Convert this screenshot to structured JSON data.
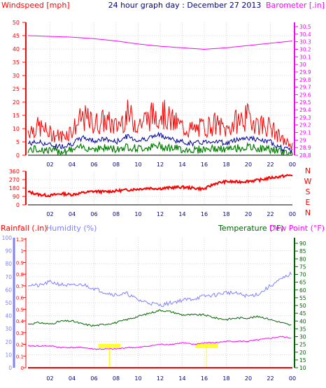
{
  "colors": {
    "wind": "#ff0000",
    "gust_avg": "#0000a0",
    "wind_low": "#008000",
    "barometer": "#ff00ff",
    "direction": "#ff0000",
    "humidity": "#8080ff",
    "temperature": "#006400",
    "dewpoint": "#ff00ff",
    "rainfall": "#ff0000",
    "rain_marker": "#ffff00",
    "grid": "#d8d8d8",
    "title": "#000080"
  },
  "chart_data": [
    {
      "type": "line",
      "title": "24 hour graph day : December 27 2013",
      "left_axis_label": "Windspeed [mph]",
      "right_axis_label": "Barometer [.in]",
      "x_ticks": [
        "02",
        "04",
        "06",
        "08",
        "10",
        "12",
        "14",
        "16",
        "18",
        "20",
        "22",
        "00"
      ],
      "y_left_ticks": [
        "0",
        "5",
        "10",
        "15",
        "20",
        "25",
        "30",
        "35",
        "40",
        "45",
        "50"
      ],
      "y_left_range": [
        0,
        50
      ],
      "y_right_ticks": [
        "28.8",
        "28.9",
        "29",
        "29.1",
        "29.2",
        "29.3",
        "29.4",
        "29.5",
        "29.6",
        "29.7",
        "29.8",
        "29.9",
        "30",
        "30.1",
        "30.2",
        "30.3",
        "30.4",
        "30.5"
      ],
      "y_right_range": [
        28.8,
        30.5
      ],
      "series": [
        {
          "name": "Windspeed [mph]",
          "axis": "left",
          "x": [
            0,
            1,
            2,
            3,
            4,
            5,
            6,
            7,
            8,
            9,
            10,
            11,
            12,
            13,
            14,
            15,
            16,
            17,
            18,
            19,
            20,
            21,
            22,
            23,
            24
          ],
          "values": [
            8,
            9,
            7,
            6,
            8,
            12,
            10,
            11,
            9,
            13,
            10,
            12,
            14,
            11,
            9,
            8,
            9,
            10,
            8,
            11,
            12,
            10,
            9,
            5,
            3
          ]
        },
        {
          "name": "Barometer",
          "axis": "right",
          "x": [
            0,
            2,
            4,
            6,
            8,
            10,
            12,
            14,
            16,
            18,
            20,
            22,
            24
          ],
          "values": [
            30.38,
            30.37,
            30.36,
            30.34,
            30.31,
            30.27,
            30.24,
            30.22,
            30.2,
            30.22,
            30.25,
            30.28,
            30.31
          ]
        }
      ]
    },
    {
      "type": "line",
      "x_ticks": [
        "02",
        "04",
        "06",
        "08",
        "10",
        "12",
        "14",
        "16",
        "18",
        "20",
        "22",
        "00"
      ],
      "y_left_ticks": [
        "0",
        "90",
        "180",
        "270",
        "360"
      ],
      "y_left_range": [
        0,
        360
      ],
      "y_right_labels": [
        "N",
        "W",
        "S",
        "E",
        "N"
      ],
      "series": [
        {
          "name": "Wind direction",
          "x": [
            0,
            1,
            2,
            3,
            4,
            5,
            6,
            7,
            8,
            9,
            10,
            11,
            12,
            13,
            14,
            15,
            16,
            17,
            18,
            19,
            20,
            21,
            22,
            23,
            24
          ],
          "values": [
            140,
            110,
            100,
            120,
            110,
            130,
            145,
            140,
            150,
            160,
            170,
            180,
            175,
            185,
            190,
            180,
            170,
            230,
            250,
            245,
            255,
            265,
            290,
            305,
            320
          ]
        }
      ]
    },
    {
      "type": "line",
      "labels": {
        "rainfall": "Rainfall (.in)",
        "humidity": "Humidity (%)",
        "temperature": "Temperature (°F)",
        "dewpoint": "Dew Point (°F)"
      },
      "x_ticks": [
        "02",
        "04",
        "06",
        "08",
        "10",
        "12",
        "14",
        "16",
        "18",
        "20",
        "22",
        "00"
      ],
      "humidity_ticks": [
        "0",
        "10",
        "20",
        "30",
        "40",
        "50",
        "60",
        "70",
        "80",
        "90",
        "100"
      ],
      "rain_ticks": [
        "0",
        "0.1",
        "0.2",
        "0.3",
        "0.4",
        "0.5",
        "0.6",
        "0.7",
        "0.8",
        "0.9",
        "1",
        "1.1"
      ],
      "temp_ticks": [
        "10",
        "15",
        "20",
        "25",
        "30",
        "35",
        "40",
        "45",
        "50",
        "55",
        "60",
        "65",
        "70",
        "75",
        "80",
        "85",
        "90"
      ],
      "humidity_range": [
        0,
        100
      ],
      "rain_range": [
        0,
        1.1
      ],
      "temp_range": [
        10,
        90
      ],
      "series": [
        {
          "name": "Humidity (%)",
          "x": [
            0,
            1,
            2,
            3,
            4,
            5,
            6,
            7,
            8,
            9,
            10,
            11,
            12,
            13,
            14,
            15,
            16,
            17,
            18,
            19,
            20,
            21,
            22,
            23,
            24
          ],
          "values": [
            64,
            63,
            66,
            64,
            63,
            64,
            61,
            58,
            56,
            57,
            52,
            50,
            48,
            50,
            52,
            53,
            55,
            56,
            58,
            57,
            55,
            57,
            63,
            68,
            73
          ]
        },
        {
          "name": "Temperature (°F)",
          "x": [
            0,
            1,
            2,
            3,
            4,
            5,
            6,
            7,
            8,
            9,
            10,
            11,
            12,
            13,
            14,
            15,
            16,
            17,
            18,
            19,
            20,
            21,
            22,
            23,
            24
          ],
          "values": [
            38,
            39,
            38,
            40,
            40,
            38,
            37,
            38,
            39,
            41,
            43,
            45,
            47,
            46,
            44,
            44,
            44,
            42,
            41,
            42,
            42,
            43,
            41,
            39,
            37
          ]
        },
        {
          "name": "Dew Point (°F)",
          "x": [
            0,
            1,
            2,
            3,
            4,
            5,
            6,
            7,
            8,
            9,
            10,
            11,
            12,
            13,
            14,
            15,
            16,
            17,
            18,
            19,
            20,
            21,
            22,
            23,
            24
          ],
          "values": [
            24,
            24,
            24,
            23,
            23,
            23,
            22,
            22,
            22,
            23,
            23,
            24,
            25,
            25,
            26,
            25,
            26,
            26,
            27,
            27,
            27,
            28,
            29,
            30,
            29
          ]
        },
        {
          "name": "Rainfall (.in)",
          "x": [
            0,
            24
          ],
          "values": [
            0,
            0
          ]
        }
      ]
    }
  ]
}
